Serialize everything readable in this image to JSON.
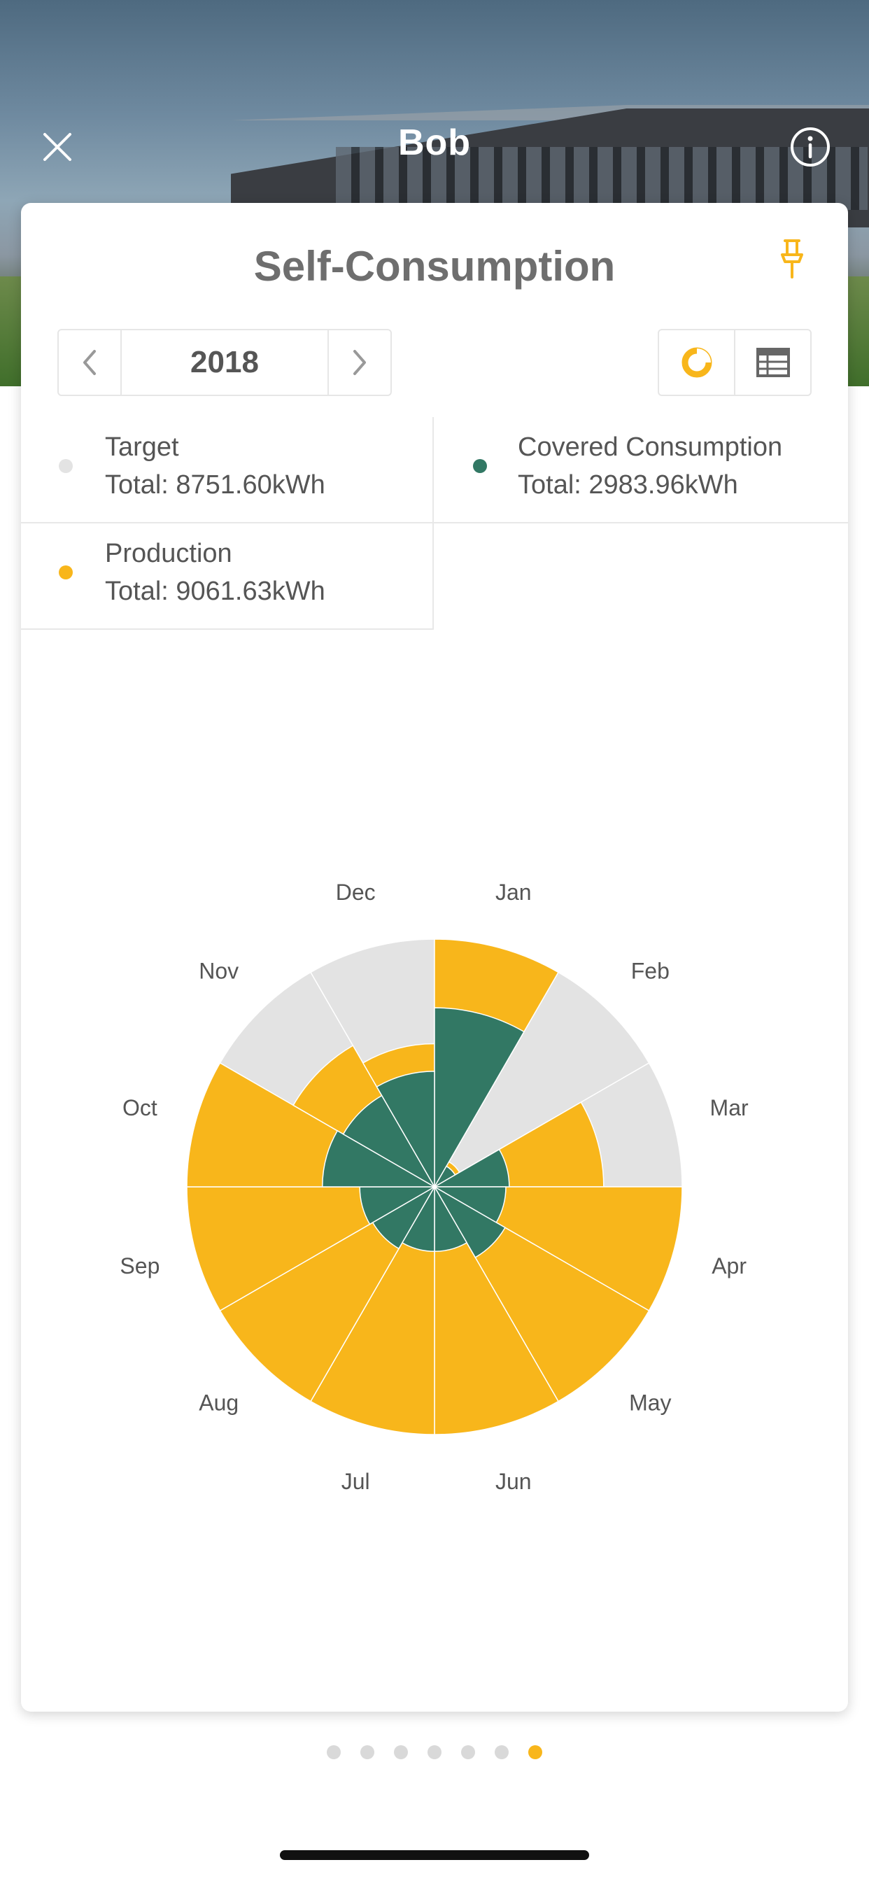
{
  "header": {
    "title": "Bob"
  },
  "card": {
    "title": "Self-Consumption",
    "year": "2018"
  },
  "colors": {
    "accent": "#f8b61b",
    "target": "#e3e3e3",
    "covered": "#327864",
    "production": "#f8b61b"
  },
  "legend": [
    {
      "name": "Target",
      "total": "Total: 8751.60kWh"
    },
    {
      "name": "Covered Consumption",
      "total": "Total: 2983.96kWh"
    },
    {
      "name": "Production",
      "total": "Total: 9061.63kWh"
    }
  ],
  "chart_data": {
    "type": "polar-area",
    "categories": [
      "Jan",
      "Feb",
      "Mar",
      "Apr",
      "May",
      "Jun",
      "Jul",
      "Aug",
      "Sep",
      "Oct",
      "Nov",
      "Dec"
    ],
    "series": [
      {
        "name": "Target",
        "values": [
          729,
          729,
          729,
          729,
          729,
          729,
          729,
          729,
          729,
          729,
          729,
          729
        ]
      },
      {
        "name": "Production",
        "values": [
          729,
          85,
          498,
          729,
          729,
          729,
          729,
          729,
          729,
          729,
          480,
          421
        ]
      },
      {
        "name": "Covered Consumption",
        "values": [
          527,
          70,
          220,
          210,
          240,
          190,
          190,
          210,
          220,
          330,
          310,
          340
        ]
      }
    ]
  },
  "pager": {
    "count": 7,
    "active": 6
  }
}
